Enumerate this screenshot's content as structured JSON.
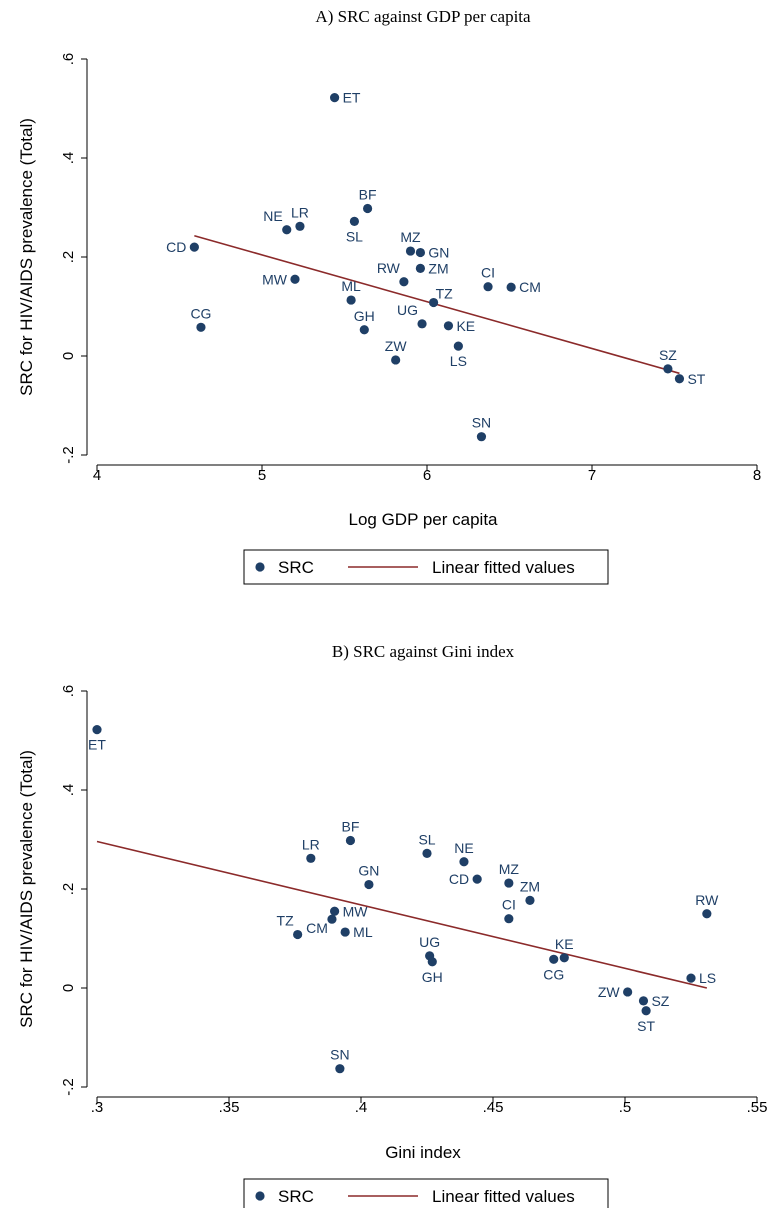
{
  "chart_data": [
    {
      "type": "scatter",
      "title": "A)  SRC against GDP per capita",
      "xlabel": "Log GDP per capita",
      "ylabel": "SRC for HIV/AIDS  prevalence (Total)",
      "xlim": [
        4,
        8
      ],
      "ylim": [
        -0.2,
        0.6
      ],
      "xticks": [
        "4",
        "5",
        "6",
        "7",
        "8"
      ],
      "yticks": [
        "-.2",
        "0",
        ".2",
        ".4",
        ".6"
      ],
      "grid": false,
      "legend_position": "bottom",
      "legend": {
        "points": "SRC",
        "line": "Linear fitted values"
      },
      "colors": {
        "points": "#1f3f66",
        "line": "#8b2a2a"
      },
      "points": [
        {
          "label": "ET",
          "x": 5.44,
          "y": 0.522,
          "pos": "right"
        },
        {
          "label": "BF",
          "x": 5.64,
          "y": 0.298,
          "pos": "above"
        },
        {
          "label": "SL",
          "x": 5.56,
          "y": 0.272,
          "pos": "below"
        },
        {
          "label": "NE",
          "x": 5.15,
          "y": 0.255,
          "pos": "aboveleft"
        },
        {
          "label": "LR",
          "x": 5.23,
          "y": 0.262,
          "pos": "above"
        },
        {
          "label": "CD",
          "x": 4.59,
          "y": 0.22,
          "pos": "left"
        },
        {
          "label": "MZ",
          "x": 5.9,
          "y": 0.212,
          "pos": "above"
        },
        {
          "label": "GN",
          "x": 5.96,
          "y": 0.209,
          "pos": "right"
        },
        {
          "label": "ZM",
          "x": 5.96,
          "y": 0.177,
          "pos": "right"
        },
        {
          "label": "RW",
          "x": 5.86,
          "y": 0.15,
          "pos": "aboveleft"
        },
        {
          "label": "MW",
          "x": 5.2,
          "y": 0.155,
          "pos": "left"
        },
        {
          "label": "CI",
          "x": 6.37,
          "y": 0.14,
          "pos": "above"
        },
        {
          "label": "CM",
          "x": 6.51,
          "y": 0.139,
          "pos": "right"
        },
        {
          "label": "ML",
          "x": 5.54,
          "y": 0.113,
          "pos": "above"
        },
        {
          "label": "TZ",
          "x": 6.04,
          "y": 0.108,
          "pos": "belowright"
        },
        {
          "label": "CG",
          "x": 4.63,
          "y": 0.058,
          "pos": "above"
        },
        {
          "label": "GH",
          "x": 5.62,
          "y": 0.053,
          "pos": "above"
        },
        {
          "label": "UG",
          "x": 5.97,
          "y": 0.065,
          "pos": "aboveleft"
        },
        {
          "label": "KE",
          "x": 6.13,
          "y": 0.061,
          "pos": "right"
        },
        {
          "label": "LS",
          "x": 6.19,
          "y": 0.02,
          "pos": "below"
        },
        {
          "label": "ZW",
          "x": 5.81,
          "y": -0.008,
          "pos": "above"
        },
        {
          "label": "SZ",
          "x": 7.46,
          "y": -0.026,
          "pos": "above"
        },
        {
          "label": "ST",
          "x": 7.53,
          "y": -0.046,
          "pos": "right"
        },
        {
          "label": "SN",
          "x": 6.33,
          "y": -0.163,
          "pos": "above"
        }
      ],
      "fit_line": {
        "x": [
          4.59,
          7.53
        ],
        "y": [
          0.243,
          -0.035
        ]
      }
    },
    {
      "type": "scatter",
      "title": "B)  SRC against Gini index",
      "xlabel": "Gini index",
      "ylabel": "SRC for HIV/AIDS prevalence (Total)",
      "xlim": [
        0.3,
        0.55
      ],
      "ylim": [
        -0.2,
        0.6
      ],
      "xticks": [
        ".3",
        ".35",
        ".4",
        ".45",
        ".5",
        ".55"
      ],
      "yticks": [
        "-.2",
        "0",
        ".2",
        ".4",
        ".6"
      ],
      "grid": false,
      "legend_position": "bottom",
      "legend": {
        "points": "SRC",
        "line": "Linear fitted values"
      },
      "colors": {
        "points": "#1f3f66",
        "line": "#8b2a2a"
      },
      "points": [
        {
          "label": "ET",
          "x": 0.3,
          "y": 0.522,
          "pos": "below"
        },
        {
          "label": "LR",
          "x": 0.381,
          "y": 0.262,
          "pos": "above"
        },
        {
          "label": "BF",
          "x": 0.396,
          "y": 0.298,
          "pos": "above"
        },
        {
          "label": "SL",
          "x": 0.425,
          "y": 0.272,
          "pos": "above"
        },
        {
          "label": "NE",
          "x": 0.439,
          "y": 0.255,
          "pos": "above"
        },
        {
          "label": "CD",
          "x": 0.444,
          "y": 0.22,
          "pos": "left"
        },
        {
          "label": "MZ",
          "x": 0.456,
          "y": 0.212,
          "pos": "above"
        },
        {
          "label": "ZM",
          "x": 0.464,
          "y": 0.177,
          "pos": "above"
        },
        {
          "label": "GN",
          "x": 0.403,
          "y": 0.209,
          "pos": "above"
        },
        {
          "label": "MW",
          "x": 0.39,
          "y": 0.155,
          "pos": "right"
        },
        {
          "label": "CM",
          "x": 0.389,
          "y": 0.139,
          "pos": "belowleft"
        },
        {
          "label": "ML",
          "x": 0.394,
          "y": 0.113,
          "pos": "right"
        },
        {
          "label": "TZ",
          "x": 0.376,
          "y": 0.108,
          "pos": "aboveleft"
        },
        {
          "label": "CI",
          "x": 0.456,
          "y": 0.14,
          "pos": "above"
        },
        {
          "label": "RW",
          "x": 0.531,
          "y": 0.15,
          "pos": "above"
        },
        {
          "label": "UG",
          "x": 0.426,
          "y": 0.065,
          "pos": "above"
        },
        {
          "label": "GH",
          "x": 0.427,
          "y": 0.053,
          "pos": "below"
        },
        {
          "label": "CG",
          "x": 0.473,
          "y": 0.058,
          "pos": "below"
        },
        {
          "label": "KE",
          "x": 0.477,
          "y": 0.061,
          "pos": "above"
        },
        {
          "label": "LS",
          "x": 0.525,
          "y": 0.02,
          "pos": "right"
        },
        {
          "label": "ZW",
          "x": 0.501,
          "y": -0.008,
          "pos": "left"
        },
        {
          "label": "SZ",
          "x": 0.507,
          "y": -0.026,
          "pos": "right"
        },
        {
          "label": "ST",
          "x": 0.508,
          "y": -0.046,
          "pos": "below"
        },
        {
          "label": "SN",
          "x": 0.392,
          "y": -0.163,
          "pos": "above"
        }
      ],
      "fit_line": {
        "x": [
          0.3,
          0.531
        ],
        "y": [
          0.296,
          0.0
        ]
      }
    }
  ]
}
